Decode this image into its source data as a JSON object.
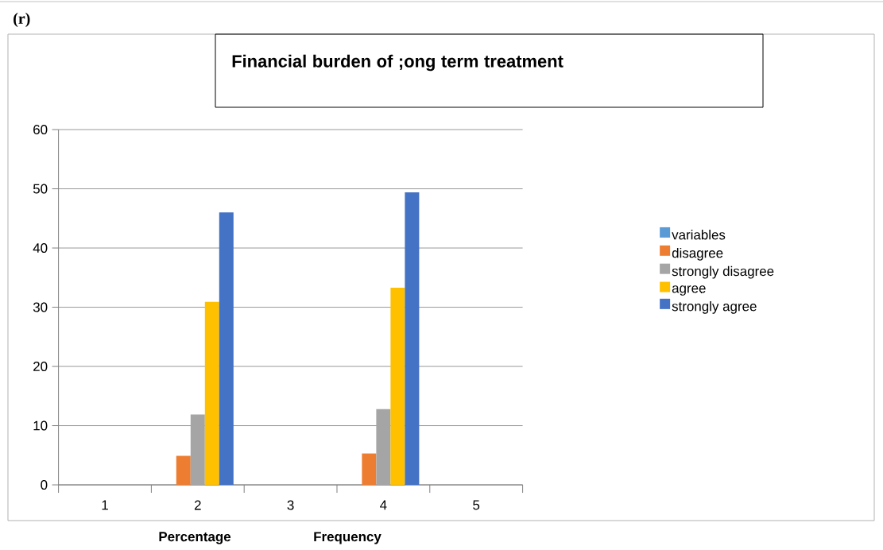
{
  "chart_data": {
    "type": "bar",
    "title": "Financial burden of ;ong term treatment",
    "categories": [
      "1",
      "2",
      "3",
      "4",
      "5"
    ],
    "series": [
      {
        "name": "variables",
        "color": "#5b9bd5",
        "values": [
          null,
          null,
          null,
          null,
          null
        ]
      },
      {
        "name": "disagree",
        "color": "#ed7d31",
        "values": [
          null,
          4.9,
          null,
          5.3,
          null
        ]
      },
      {
        "name": "strongly disagree",
        "color": "#a5a5a5",
        "values": [
          null,
          11.9,
          null,
          12.8,
          null
        ]
      },
      {
        "name": "agree",
        "color": "#ffc000",
        "values": [
          null,
          30.9,
          null,
          33.3,
          null
        ]
      },
      {
        "name": "strongly agree",
        "color": "#4472c4",
        "values": [
          null,
          46.0,
          null,
          49.4,
          null
        ]
      }
    ],
    "ylim": [
      0,
      60
    ],
    "yticks": [
      0,
      10,
      20,
      30,
      40,
      50,
      60
    ],
    "grid": "y",
    "legend": "right",
    "annotations": [
      "(r)",
      "Percentage",
      "Frequency"
    ]
  }
}
